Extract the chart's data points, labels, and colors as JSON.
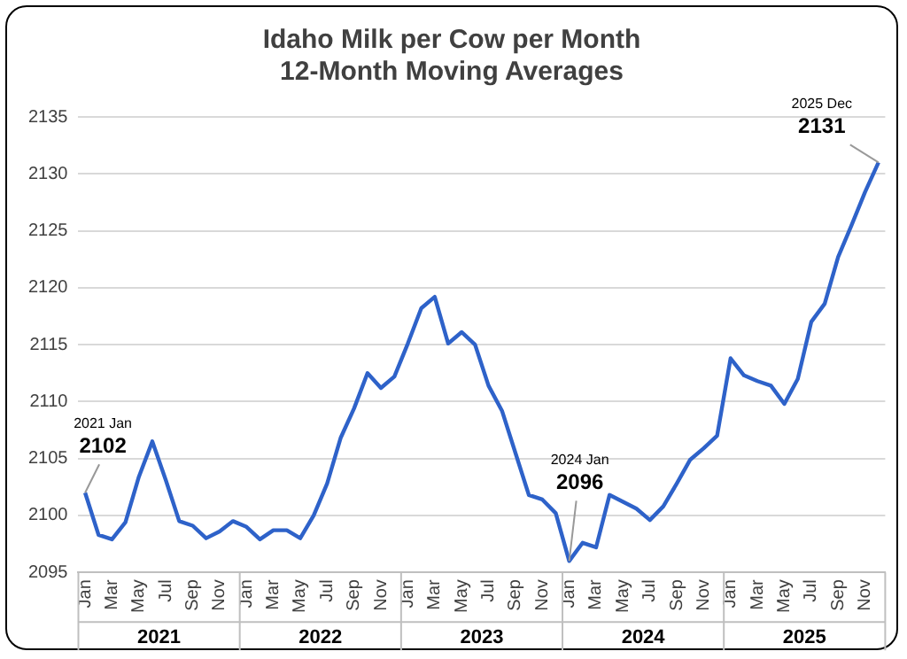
{
  "chart_data": {
    "type": "line",
    "title": [
      "Idaho Milk per Cow per Month",
      "12-Month Moving Averages"
    ],
    "categories": [
      "Jan",
      null,
      "Mar",
      null,
      "May",
      null,
      "Jul",
      null,
      "Sep",
      null,
      "Nov",
      null,
      "Jan",
      null,
      "Mar",
      null,
      "May",
      null,
      "Jul",
      null,
      "Sep",
      null,
      "Nov",
      null,
      "Jan",
      null,
      "Mar",
      null,
      "May",
      null,
      "Jul",
      null,
      "Sep",
      null,
      "Nov",
      null,
      "Jan",
      null,
      "Mar",
      null,
      "May",
      null,
      "Jul",
      null,
      "Sep",
      null,
      "Nov",
      null,
      "Jan",
      null,
      "Mar",
      null,
      "May",
      null,
      "Jul",
      null,
      "Sep",
      null,
      "Nov",
      null
    ],
    "series": [
      {
        "color": "#2e62c9",
        "values": [
          2102,
          2098.3,
          2097.9,
          2099.4,
          2103.4,
          2106.5,
          2103.1,
          2099.5,
          2099.1,
          2098,
          2098.6,
          2099.5,
          2099,
          2097.9,
          2098.7,
          2098.7,
          2098,
          2100,
          2102.8,
          2106.8,
          2109.4,
          2112.5,
          2111.2,
          2112.2,
          2115.1,
          2118.2,
          2119.2,
          2115.1,
          2116.1,
          2115,
          2111.4,
          2109.2,
          2105.5,
          2101.8,
          2101.4,
          2100.2,
          2096,
          2097.6,
          2097.2,
          2101.8,
          2101.2,
          2100.6,
          2099.6,
          2100.8,
          2102.8,
          2104.9,
          2105.9,
          2107,
          2113.8,
          2112.3,
          2111.8,
          2111.4,
          2109.8,
          2112,
          2117,
          2118.6,
          2122.7,
          2125.5,
          2128.4,
          2131
        ],
        "value_labels": [
          "2102",
          null,
          null,
          null,
          null,
          null,
          null,
          null,
          null,
          null,
          null,
          null,
          null,
          null,
          null,
          null,
          null,
          null,
          null,
          null,
          null,
          null,
          null,
          null,
          null,
          null,
          null,
          null,
          null,
          null,
          null,
          null,
          null,
          null,
          null,
          null,
          "2096",
          null,
          null,
          null,
          null,
          null,
          null,
          null,
          null,
          null,
          null,
          null,
          null,
          null,
          null,
          null,
          null,
          null,
          null,
          null,
          null,
          null,
          null,
          "2131"
        ]
      }
    ],
    "annotations": [
      "2021 Jan",
      "2024 Jan",
      "2025 Dec",
      "2021",
      "2022",
      "2023",
      "2024",
      "2025"
    ],
    "ylim": [
      2095,
      2135
    ],
    "yticks": [
      2095,
      2100,
      2105,
      2110,
      2115,
      2120,
      2125,
      2130,
      2135
    ],
    "grid": "y",
    "legend": false,
    "marker": "none",
    "line_style": "solid"
  }
}
